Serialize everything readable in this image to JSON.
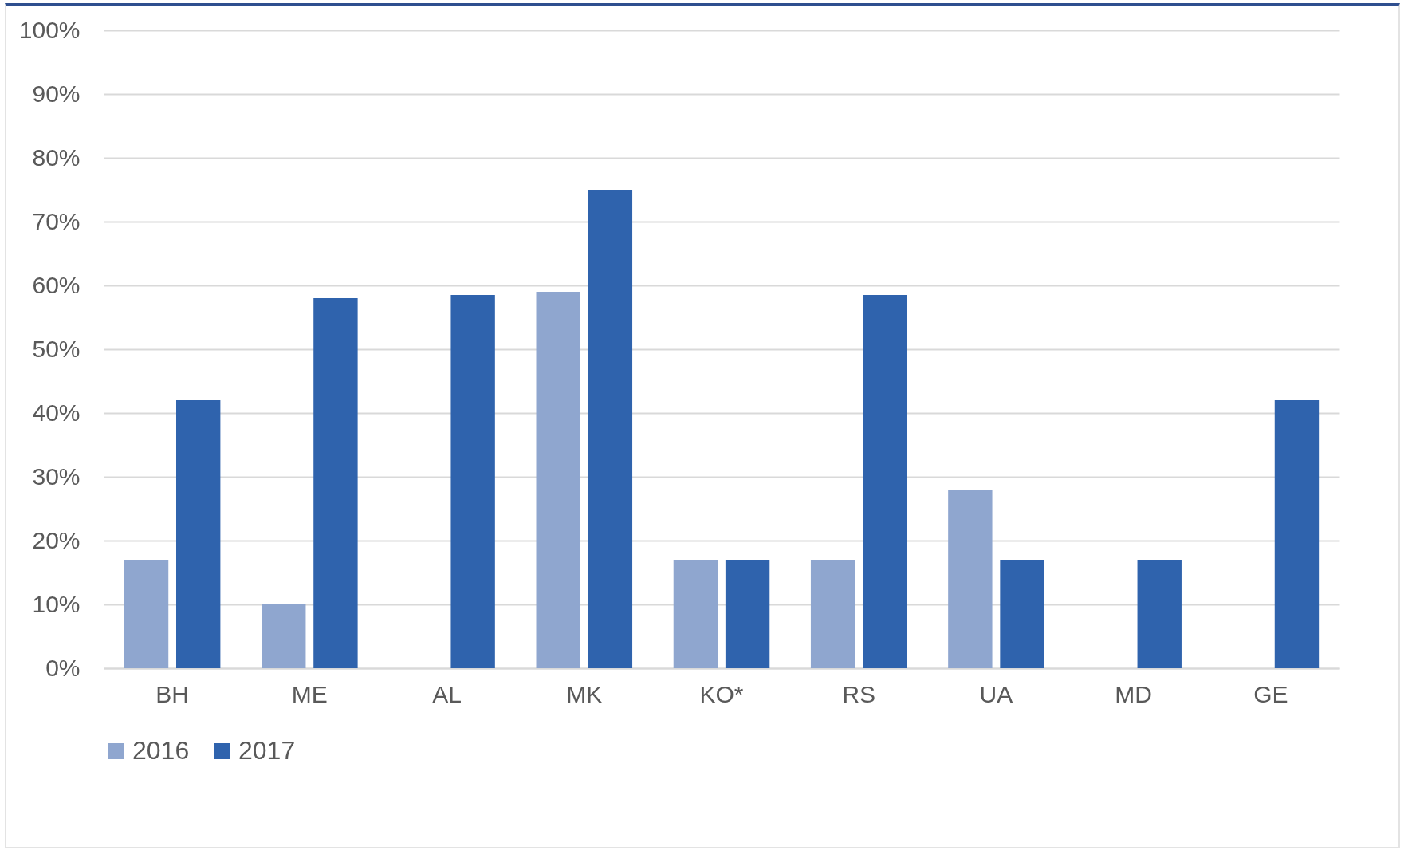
{
  "chart_data": {
    "type": "bar",
    "categories": [
      "BH",
      "ME",
      "AL",
      "MK",
      "KO*",
      "RS",
      "UA",
      "MD",
      "GE"
    ],
    "series": [
      {
        "name": "2016",
        "color": "#8fa6cf",
        "values": [
          17,
          10,
          null,
          59,
          17,
          17,
          28,
          null,
          null
        ]
      },
      {
        "name": "2017",
        "color": "#2f63ad",
        "values": [
          42,
          58,
          58.5,
          75,
          17,
          58.5,
          17,
          17,
          42
        ]
      }
    ],
    "ylim": [
      0,
      100
    ],
    "yticks": [
      {
        "value": 0,
        "label": "0%"
      },
      {
        "value": 10,
        "label": "10%"
      },
      {
        "value": 20,
        "label": "20%"
      },
      {
        "value": 30,
        "label": "30%"
      },
      {
        "value": 40,
        "label": "40%"
      },
      {
        "value": 50,
        "label": "50%"
      },
      {
        "value": 60,
        "label": "60%"
      },
      {
        "value": 70,
        "label": "70%"
      },
      {
        "value": 80,
        "label": "80%"
      },
      {
        "value": 90,
        "label": "90%"
      },
      {
        "value": 100,
        "label": "100%"
      }
    ],
    "grid": "y",
    "legend": "bottom"
  }
}
